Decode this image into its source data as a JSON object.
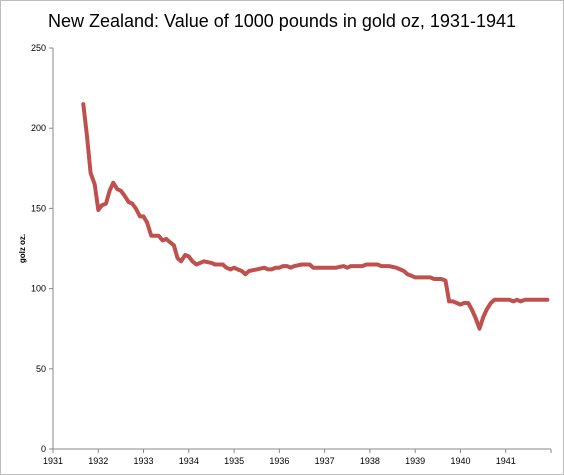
{
  "chart_data": {
    "type": "line",
    "title": "New Zealand: Value of 1000 pounds in gold oz, 1931-1941",
    "xlabel": "",
    "ylabel": "golz oz.",
    "xlim": [
      1931,
      1942
    ],
    "ylim": [
      0,
      250
    ],
    "x_ticks": [
      1931,
      1932,
      1933,
      1934,
      1935,
      1936,
      1937,
      1938,
      1939,
      1940,
      1941
    ],
    "y_ticks": [
      0,
      50,
      100,
      150,
      200,
      250
    ],
    "grid": false,
    "legend": "none",
    "series": [
      {
        "color": "#c0504d",
        "points": [
          [
            1931.67,
            215
          ],
          [
            1931.75,
            195
          ],
          [
            1931.83,
            172
          ],
          [
            1931.92,
            165
          ],
          [
            1932.0,
            149
          ],
          [
            1932.08,
            152
          ],
          [
            1932.17,
            153
          ],
          [
            1932.25,
            161
          ],
          [
            1932.33,
            166
          ],
          [
            1932.42,
            162
          ],
          [
            1932.5,
            161
          ],
          [
            1932.58,
            158
          ],
          [
            1932.67,
            154
          ],
          [
            1932.75,
            153
          ],
          [
            1932.83,
            150
          ],
          [
            1932.92,
            145
          ],
          [
            1933.0,
            145
          ],
          [
            1933.08,
            141
          ],
          [
            1933.17,
            133
          ],
          [
            1933.25,
            133
          ],
          [
            1933.33,
            133
          ],
          [
            1933.42,
            130
          ],
          [
            1933.5,
            131
          ],
          [
            1933.58,
            129
          ],
          [
            1933.67,
            127
          ],
          [
            1933.75,
            119
          ],
          [
            1933.83,
            117
          ],
          [
            1933.92,
            121
          ],
          [
            1934.0,
            120
          ],
          [
            1934.08,
            117
          ],
          [
            1934.17,
            115
          ],
          [
            1934.25,
            116
          ],
          [
            1934.33,
            117
          ],
          [
            1934.5,
            116
          ],
          [
            1934.58,
            115
          ],
          [
            1934.67,
            115
          ],
          [
            1934.75,
            115
          ],
          [
            1934.83,
            113
          ],
          [
            1934.92,
            112
          ],
          [
            1935.0,
            113
          ],
          [
            1935.08,
            112
          ],
          [
            1935.17,
            111
          ],
          [
            1935.25,
            109
          ],
          [
            1935.33,
            111
          ],
          [
            1935.5,
            112
          ],
          [
            1935.67,
            113
          ],
          [
            1935.75,
            112
          ],
          [
            1935.83,
            112
          ],
          [
            1935.92,
            113
          ],
          [
            1936.0,
            113
          ],
          [
            1936.08,
            114
          ],
          [
            1936.17,
            114
          ],
          [
            1936.25,
            113
          ],
          [
            1936.33,
            114
          ],
          [
            1936.5,
            115
          ],
          [
            1936.58,
            115
          ],
          [
            1936.67,
            115
          ],
          [
            1936.75,
            113
          ],
          [
            1936.83,
            113
          ],
          [
            1937.0,
            113
          ],
          [
            1937.25,
            113
          ],
          [
            1937.42,
            114
          ],
          [
            1937.5,
            113
          ],
          [
            1937.58,
            114
          ],
          [
            1937.67,
            114
          ],
          [
            1937.75,
            114
          ],
          [
            1937.83,
            114
          ],
          [
            1937.92,
            115
          ],
          [
            1938.0,
            115
          ],
          [
            1938.17,
            115
          ],
          [
            1938.25,
            114
          ],
          [
            1938.42,
            114
          ],
          [
            1938.58,
            113
          ],
          [
            1938.67,
            112
          ],
          [
            1938.75,
            111
          ],
          [
            1938.83,
            109
          ],
          [
            1938.92,
            108
          ],
          [
            1939.0,
            107
          ],
          [
            1939.08,
            107
          ],
          [
            1939.25,
            107
          ],
          [
            1939.33,
            107
          ],
          [
            1939.42,
            106
          ],
          [
            1939.58,
            106
          ],
          [
            1939.67,
            105
          ],
          [
            1939.75,
            92
          ],
          [
            1939.83,
            92
          ],
          [
            1939.92,
            91
          ],
          [
            1940.0,
            90
          ],
          [
            1940.08,
            91
          ],
          [
            1940.17,
            91
          ],
          [
            1940.25,
            87
          ],
          [
            1940.33,
            82
          ],
          [
            1940.42,
            75
          ],
          [
            1940.5,
            82
          ],
          [
            1940.58,
            87
          ],
          [
            1940.67,
            91
          ],
          [
            1940.75,
            93
          ],
          [
            1940.83,
            93
          ],
          [
            1941.0,
            93
          ],
          [
            1941.08,
            93
          ],
          [
            1941.17,
            92
          ],
          [
            1941.25,
            93
          ],
          [
            1941.33,
            92
          ],
          [
            1941.42,
            93
          ],
          [
            1941.5,
            93
          ],
          [
            1941.67,
            93
          ],
          [
            1941.83,
            93
          ],
          [
            1941.92,
            93
          ]
        ]
      }
    ]
  }
}
